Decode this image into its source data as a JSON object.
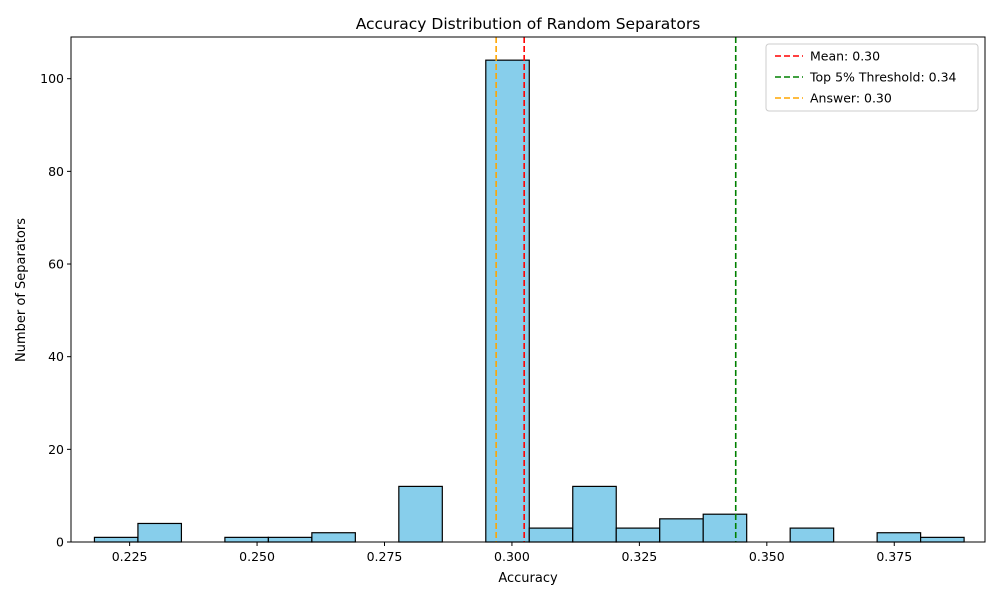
{
  "chart_data": {
    "type": "bar",
    "title": "Accuracy Distribution of Random Separators",
    "xlabel": "Accuracy",
    "ylabel": "Number of Separators",
    "xlim": [
      0.2135,
      0.3928
    ],
    "ylim": [
      0,
      109
    ],
    "xticks": [
      0.225,
      0.25,
      0.275,
      0.3,
      0.325,
      0.35,
      0.375
    ],
    "xtick_labels": [
      "0.225",
      "0.250",
      "0.275",
      "0.300",
      "0.325",
      "0.350",
      "0.375"
    ],
    "yticks": [
      0,
      20,
      40,
      60,
      80,
      100
    ],
    "ytick_labels": [
      "0",
      "20",
      "40",
      "60",
      "80",
      "100"
    ],
    "bar_color": "#87ceeb",
    "bar_edge_color": "#000000",
    "bins": {
      "start": 0.2181,
      "width": 0.00853,
      "counts": [
        1,
        4,
        0,
        1,
        1,
        2,
        0,
        12,
        0,
        104,
        3,
        12,
        3,
        5,
        6,
        0,
        3,
        0,
        2,
        1
      ]
    },
    "reference_lines": [
      {
        "x": 0.3024,
        "color": "#ff0000",
        "label": "Mean: 0.30"
      },
      {
        "x": 0.3439,
        "color": "#008000",
        "label": "Top 5% Threshold: 0.34"
      },
      {
        "x": 0.2969,
        "color": "#ffa500",
        "label": "Answer: 0.30"
      }
    ],
    "legend_position": "top-right",
    "grid": false
  }
}
